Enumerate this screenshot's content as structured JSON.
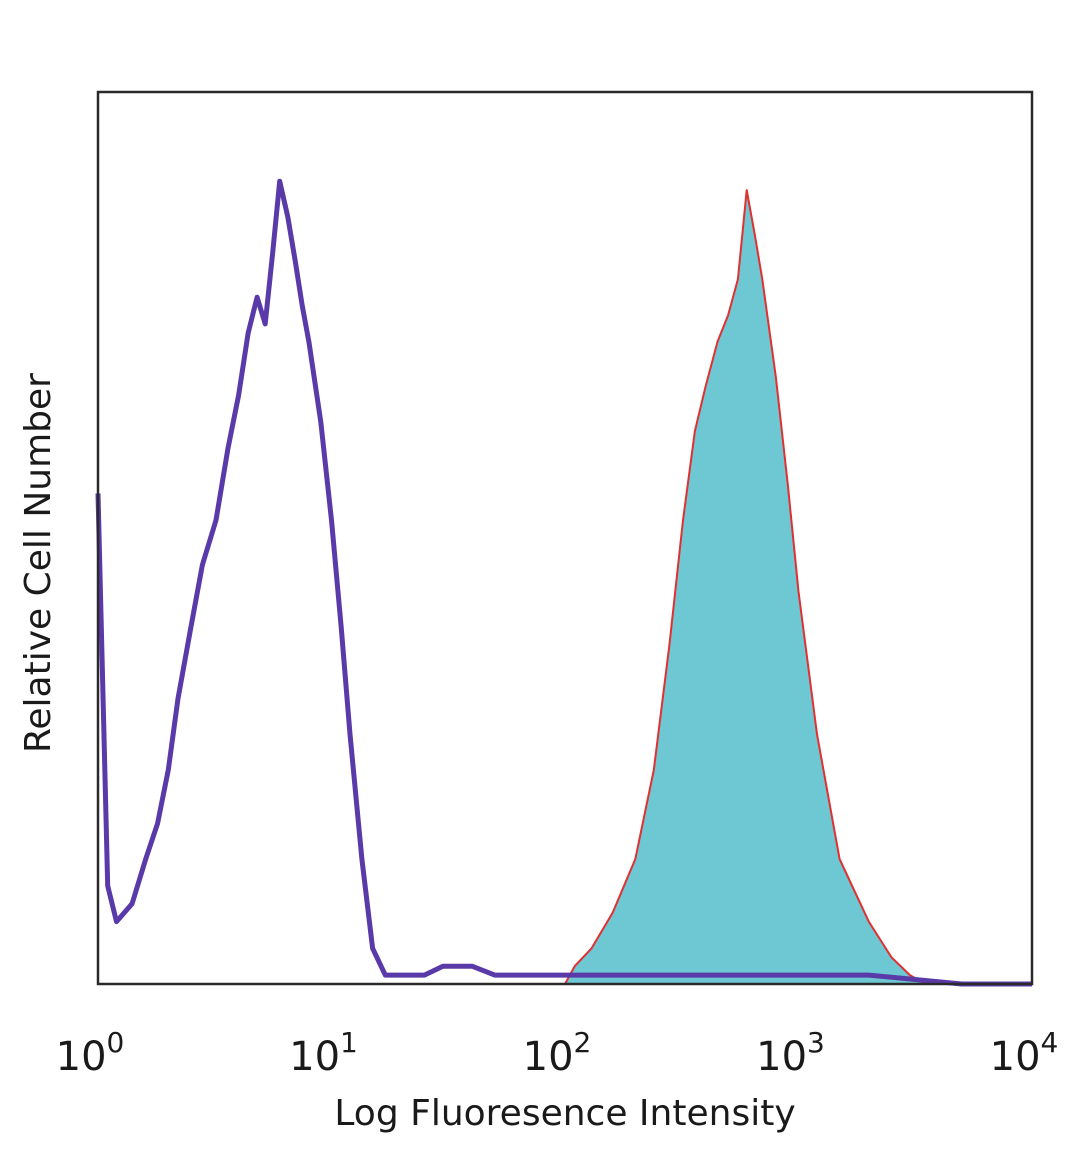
{
  "chart_data": {
    "type": "area",
    "title": "",
    "xlabel": "Log Fluoresence Intensity",
    "ylabel": "Relative Cell Number",
    "x_scale": "log",
    "xlim": [
      1,
      10000
    ],
    "ylim": [
      0,
      100
    ],
    "grid": false,
    "x_ticks": [
      {
        "value": 1,
        "base": "10",
        "exp": "0"
      },
      {
        "value": 10,
        "base": "10",
        "exp": "1"
      },
      {
        "value": 100,
        "base": "10",
        "exp": "2"
      },
      {
        "value": 1000,
        "base": "10",
        "exp": "3"
      },
      {
        "value": 10000,
        "base": "10",
        "exp": "4"
      }
    ],
    "series": [
      {
        "style": "line",
        "color": "#5a3aa8",
        "x": [
          1.0,
          1.1,
          1.2,
          1.4,
          1.6,
          1.8,
          2.0,
          2.2,
          2.5,
          2.8,
          3.2,
          3.6,
          4.0,
          4.4,
          4.8,
          5.2,
          5.6,
          6.0,
          6.5,
          7.0,
          7.5,
          8.0,
          9.0,
          10.0,
          11.0,
          12.0,
          13.5,
          15.0,
          17.0,
          20.0,
          25.0,
          30.0,
          40.0,
          50.0,
          70.0,
          100.0,
          150.0,
          200.0,
          300.0,
          500.0,
          1000.0,
          2000.0,
          5000.0,
          10000.0
        ],
        "y": [
          55,
          11,
          7,
          9,
          14,
          18,
          24,
          32,
          40,
          47,
          52,
          60,
          66,
          73,
          77,
          74,
          82,
          90,
          86,
          81,
          76,
          72,
          63,
          52,
          40,
          28,
          14,
          4,
          1,
          1,
          1,
          2,
          2,
          1,
          1,
          1,
          1,
          1,
          1,
          1,
          1,
          1,
          0,
          0
        ]
      },
      {
        "style": "filled",
        "color": "#6ec8d4",
        "edge_color": "#e03030",
        "x": [
          1.0,
          100.0,
          110.0,
          130.0,
          160.0,
          200.0,
          240.0,
          280.0,
          320.0,
          360.0,
          400.0,
          450.0,
          500.0,
          550.0,
          600.0,
          650.0,
          700.0,
          800.0,
          900.0,
          1000.0,
          1200.0,
          1500.0,
          2000.0,
          2500.0,
          3000.0,
          3500.0,
          10000.0
        ],
        "y": [
          0,
          0,
          2,
          4,
          8,
          14,
          24,
          38,
          52,
          62,
          67,
          72,
          75,
          79,
          89,
          84,
          79,
          68,
          56,
          44,
          28,
          14,
          7,
          3,
          1,
          0,
          0
        ]
      }
    ]
  }
}
